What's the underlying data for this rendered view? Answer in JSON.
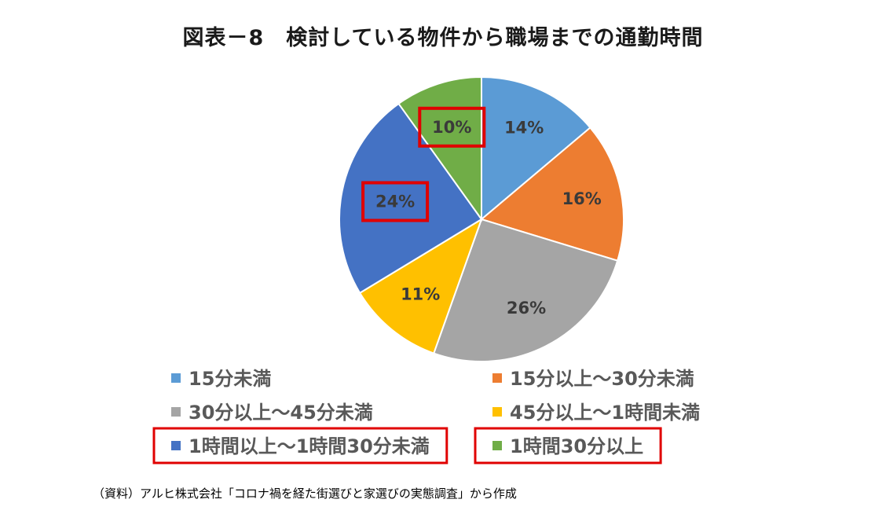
{
  "chart_data": {
    "type": "pie",
    "title": "図表－8　検討している物件から職場までの通勤時間",
    "categories": [
      "15分未満",
      "15分以上～30分未満",
      "30分以上～45分未満",
      "45分以上～1時間未満",
      "1時間以上～1時間30分未満",
      "1時間30分以上"
    ],
    "values": [
      14,
      16,
      26,
      11,
      24,
      10
    ],
    "labels": [
      "14%",
      "16%",
      "26%",
      "11%",
      "24%",
      "10%"
    ],
    "colors": [
      "#5b9bd5",
      "#ed7d31",
      "#a5a5a5",
      "#ffc000",
      "#4472c4",
      "#70ad47"
    ],
    "legend_position": "bottom",
    "highlighted": [
      "1時間以上～1時間30分未満",
      "1時間30分以上"
    ],
    "highlight_color": "#e00000"
  },
  "source": "（資料）アルヒ株式会社「コロナ禍を経た街選びと家選びの実態調査」から作成"
}
